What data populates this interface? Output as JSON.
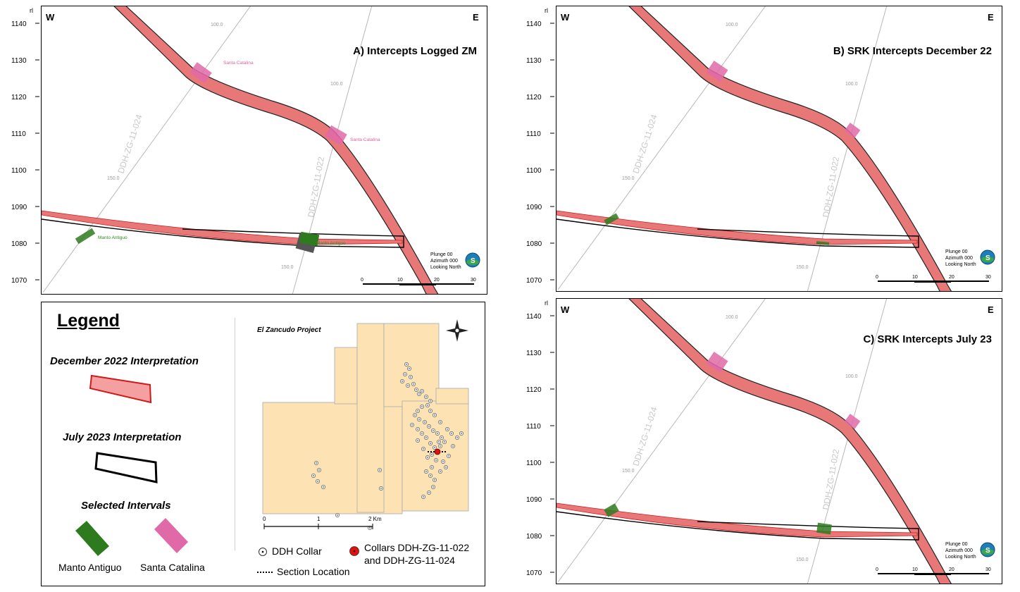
{
  "panels": [
    {
      "id": "A",
      "title": "A) Intercepts Logged ZM",
      "west": "W",
      "east": "E",
      "rl": "rl",
      "yticks": [
        "1140",
        "1130",
        "1120",
        "1110",
        "1100",
        "1090",
        "1080",
        "1070"
      ],
      "drill_labels": [
        "DDH-ZG-11-024",
        "DDH-ZG-11-022"
      ],
      "depth_labels": [
        "100.0",
        "100.0",
        "150.0",
        "150.0"
      ],
      "intercept_labels": [
        "Santa Catalina",
        "Santa Catalina",
        "Manto Antiguo",
        "Manto Antiguo"
      ],
      "view": [
        "Plunge 00",
        "Azimuth 000",
        "Looking North"
      ],
      "scale": [
        "0",
        "10",
        "20",
        "30"
      ]
    },
    {
      "id": "B",
      "title": "B) SRK Intercepts December 22",
      "west": "W",
      "east": "E",
      "rl": "rl",
      "yticks": [
        "1140",
        "1130",
        "1120",
        "1110",
        "1100",
        "1090",
        "1080",
        "1070"
      ],
      "drill_labels": [
        "DDH-ZG-11-024",
        "DDH-ZG-11-022"
      ],
      "depth_labels": [
        "100.0",
        "100.0",
        "150.0",
        "150.0"
      ],
      "view": [
        "Plunge 00",
        "Azimuth 000",
        "Looking North"
      ],
      "scale": [
        "0",
        "10",
        "20",
        "30"
      ]
    },
    {
      "id": "C",
      "title": "C) SRK Intercepts July 23",
      "west": "W",
      "east": "E",
      "rl": "rl",
      "yticks": [
        "1140",
        "1130",
        "1120",
        "1110",
        "1100",
        "1090",
        "1080",
        "1070"
      ],
      "drill_labels": [
        "DDH-ZG-11-024",
        "DDH-ZG-11-022"
      ],
      "depth_labels": [
        "100.0",
        "100.0",
        "150.0",
        "150.0"
      ],
      "view": [
        "Plunge 00",
        "Azimuth 000",
        "Looking North"
      ],
      "scale": [
        "0",
        "10",
        "20",
        "30"
      ]
    }
  ],
  "legend": {
    "title": "Legend",
    "dec_interp": "December 2022  Interpretation",
    "jul_interp": "July 2023 Interpretation",
    "selected": "Selected Intervals",
    "manto": "Manto Antiguo",
    "santa": "Santa Catalina",
    "map_title": "El Zancudo Project",
    "map_scale": [
      "0",
      "1",
      "2 Km"
    ],
    "ddh_collar": "DDH Collar",
    "collars_line1": "Collars DDH-ZG-11-022",
    "collars_line2": "and DDH-ZG-11-024",
    "section_location": "Section Location"
  },
  "colors": {
    "dec_fill": "#e87878",
    "dec_edge": "#d01a1a",
    "jul_edge": "#000000",
    "manto": "#2e7a1e",
    "santa": "#e06aa8",
    "claim": "#fde3b4"
  }
}
